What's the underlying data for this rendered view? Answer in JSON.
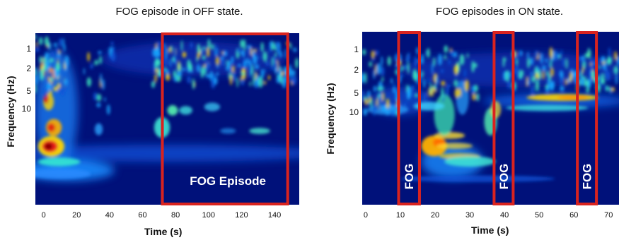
{
  "chart_data": [
    {
      "type": "heatmap",
      "title": "FOG episode in OFF state.",
      "xlabel": "Time (s)",
      "ylabel": "Frequency (Hz)",
      "xlim": [
        -5,
        155
      ],
      "xticks": [
        0,
        20,
        40,
        60,
        80,
        100,
        120,
        140
      ],
      "yticks": [
        "1",
        "2",
        "5",
        "10"
      ],
      "annotations": [
        {
          "label": "FOG Episode",
          "x_start": 72,
          "x_end": 148
        }
      ]
    },
    {
      "type": "heatmap",
      "title": "FOG episodes in ON state.",
      "xlabel": "Time (s)",
      "ylabel": "Frequency (Hz)",
      "xlim": [
        -1,
        73
      ],
      "xticks": [
        0,
        10,
        20,
        30,
        40,
        50,
        60,
        70
      ],
      "yticks": [
        "1",
        "2",
        "5",
        "10"
      ],
      "annotations": [
        {
          "label": "FOG",
          "x_start": 9.5,
          "x_end": 15.5
        },
        {
          "label": "FOG",
          "x_start": 37,
          "x_end": 42.5
        },
        {
          "label": "FOG",
          "x_start": 61,
          "x_end": 66.5
        }
      ]
    }
  ],
  "colors": {
    "box": "#d9231f",
    "background": "#00117a"
  }
}
